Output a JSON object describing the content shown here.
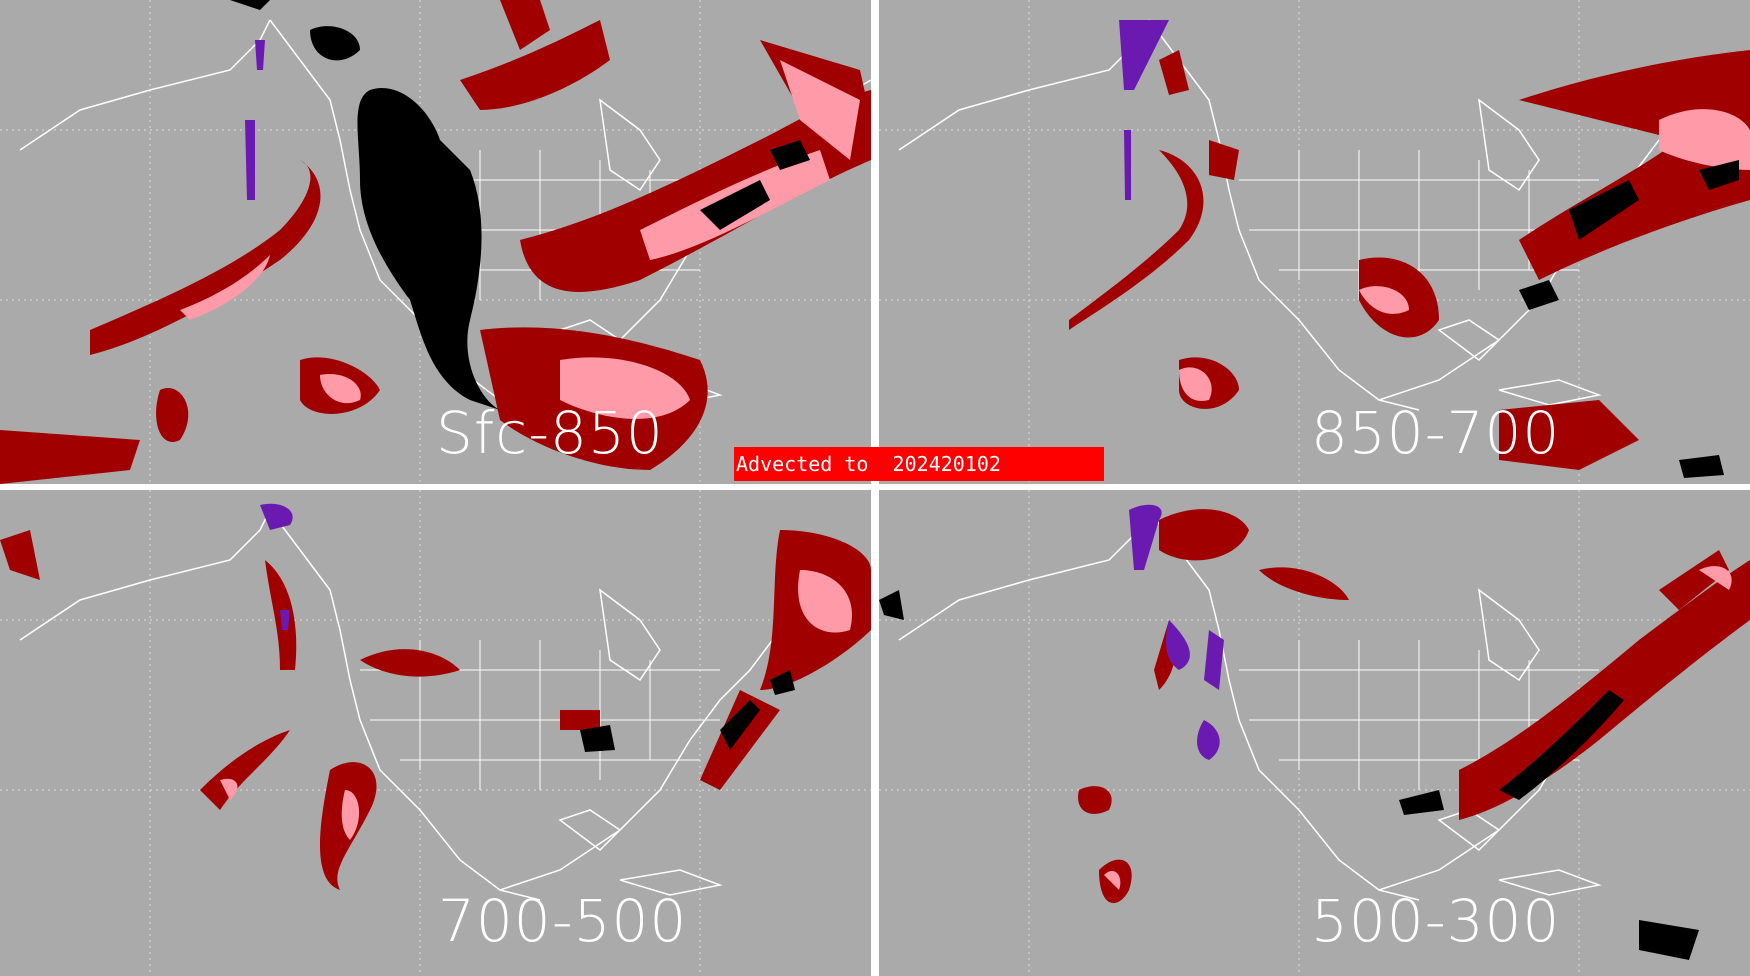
{
  "panels": {
    "top_left": {
      "layer": "Sfc-850"
    },
    "top_right": {
      "layer": "850-700"
    },
    "bottom_left": {
      "layer": "700-500"
    },
    "bottom_right": {
      "layer": "500-300"
    }
  },
  "banner": {
    "text": "Advected to  202420102"
  },
  "colors": {
    "background": "#aaaaaa",
    "divider": "#ffffff",
    "coastline": "#ffffff",
    "dark_red": "#a00000",
    "pink": "#ff9aa8",
    "black": "#000000",
    "purple": "#6a1ab0",
    "banner": "#ff0000"
  }
}
